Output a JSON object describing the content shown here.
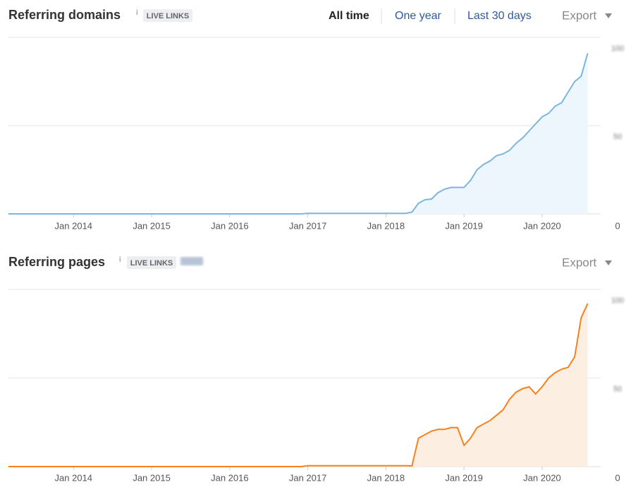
{
  "time_range": [
    "All time",
    "One year",
    "Last 30 days"
  ],
  "chart_data": [
    {
      "type": "line",
      "title": "Referring domains",
      "info": "i",
      "badge": "LIVE LINKS",
      "export": "Export",
      "color": "#7cb5e0",
      "fill": "#eef6fd",
      "x": [
        "2013-03",
        "2016-12",
        "2017-01",
        "2018-04",
        "2018-05",
        "2018-06",
        "2018-07",
        "2018-08",
        "2018-09",
        "2018-10",
        "2018-11",
        "2018-12",
        "2019-01",
        "2019-02",
        "2019-03",
        "2019-04",
        "2019-05",
        "2019-06",
        "2019-07",
        "2019-08",
        "2019-09",
        "2019-10",
        "2019-11",
        "2019-12",
        "2020-01",
        "2020-02",
        "2020-03",
        "2020-04",
        "2020-05",
        "2020-06",
        "2020-07",
        "2020-08"
      ],
      "values": [
        0,
        0,
        0.3,
        0.3,
        1,
        6,
        8,
        8.4,
        12,
        14,
        15,
        15,
        15,
        19,
        25,
        28,
        30,
        33,
        34,
        36,
        40,
        43,
        47,
        51,
        55,
        57,
        61,
        63,
        69,
        75,
        78,
        91
      ],
      "xlim": [
        "2013-03",
        "2020-10"
      ],
      "xticks": [
        {
          "value": "2014-01",
          "label": "Jan 2014"
        },
        {
          "value": "2015-01",
          "label": "Jan 2015"
        },
        {
          "value": "2016-01",
          "label": "Jan 2016"
        },
        {
          "value": "2017-01",
          "label": "Jan 2017"
        },
        {
          "value": "2018-01",
          "label": "Jan 2018"
        },
        {
          "value": "2019-01",
          "label": "Jan 2019"
        },
        {
          "value": "2020-01",
          "label": "Jan 2020"
        }
      ],
      "ylim": [
        0,
        100
      ],
      "yticks": [
        0,
        50,
        100
      ],
      "grid": true
    },
    {
      "type": "line",
      "title": "Referring pages",
      "info": "i",
      "badge": "LIVE LINKS",
      "export": "Export",
      "color": "#f5821f",
      "fill": "#fdeee2",
      "x": [
        "2013-03",
        "2016-12",
        "2017-01",
        "2018-04",
        "2018-05",
        "2018-06",
        "2018-07",
        "2018-08",
        "2018-09",
        "2018-10",
        "2018-11",
        "2018-12",
        "2019-01",
        "2019-02",
        "2019-03",
        "2019-04",
        "2019-05",
        "2019-06",
        "2019-07",
        "2019-08",
        "2019-09",
        "2019-10",
        "2019-11",
        "2019-12",
        "2020-01",
        "2020-02",
        "2020-03",
        "2020-04",
        "2020-05",
        "2020-06",
        "2020-07",
        "2020-08"
      ],
      "values": [
        0,
        0,
        0.5,
        0.5,
        0.4,
        16,
        18,
        20,
        21,
        21,
        22,
        22,
        12,
        16,
        22,
        24,
        26,
        29,
        32,
        38,
        42,
        44,
        45,
        41,
        45,
        50,
        53,
        55,
        56,
        62,
        84,
        92
      ],
      "xlim": [
        "2013-03",
        "2020-10"
      ],
      "xticks": [
        {
          "value": "2014-01",
          "label": "Jan 2014"
        },
        {
          "value": "2015-01",
          "label": "Jan 2015"
        },
        {
          "value": "2016-01",
          "label": "Jan 2016"
        },
        {
          "value": "2017-01",
          "label": "Jan 2017"
        },
        {
          "value": "2018-01",
          "label": "Jan 2018"
        },
        {
          "value": "2019-01",
          "label": "Jan 2019"
        },
        {
          "value": "2020-01",
          "label": "Jan 2020"
        }
      ],
      "ylim": [
        0,
        100
      ],
      "yticks": [
        0,
        50,
        100
      ],
      "grid": true
    }
  ]
}
